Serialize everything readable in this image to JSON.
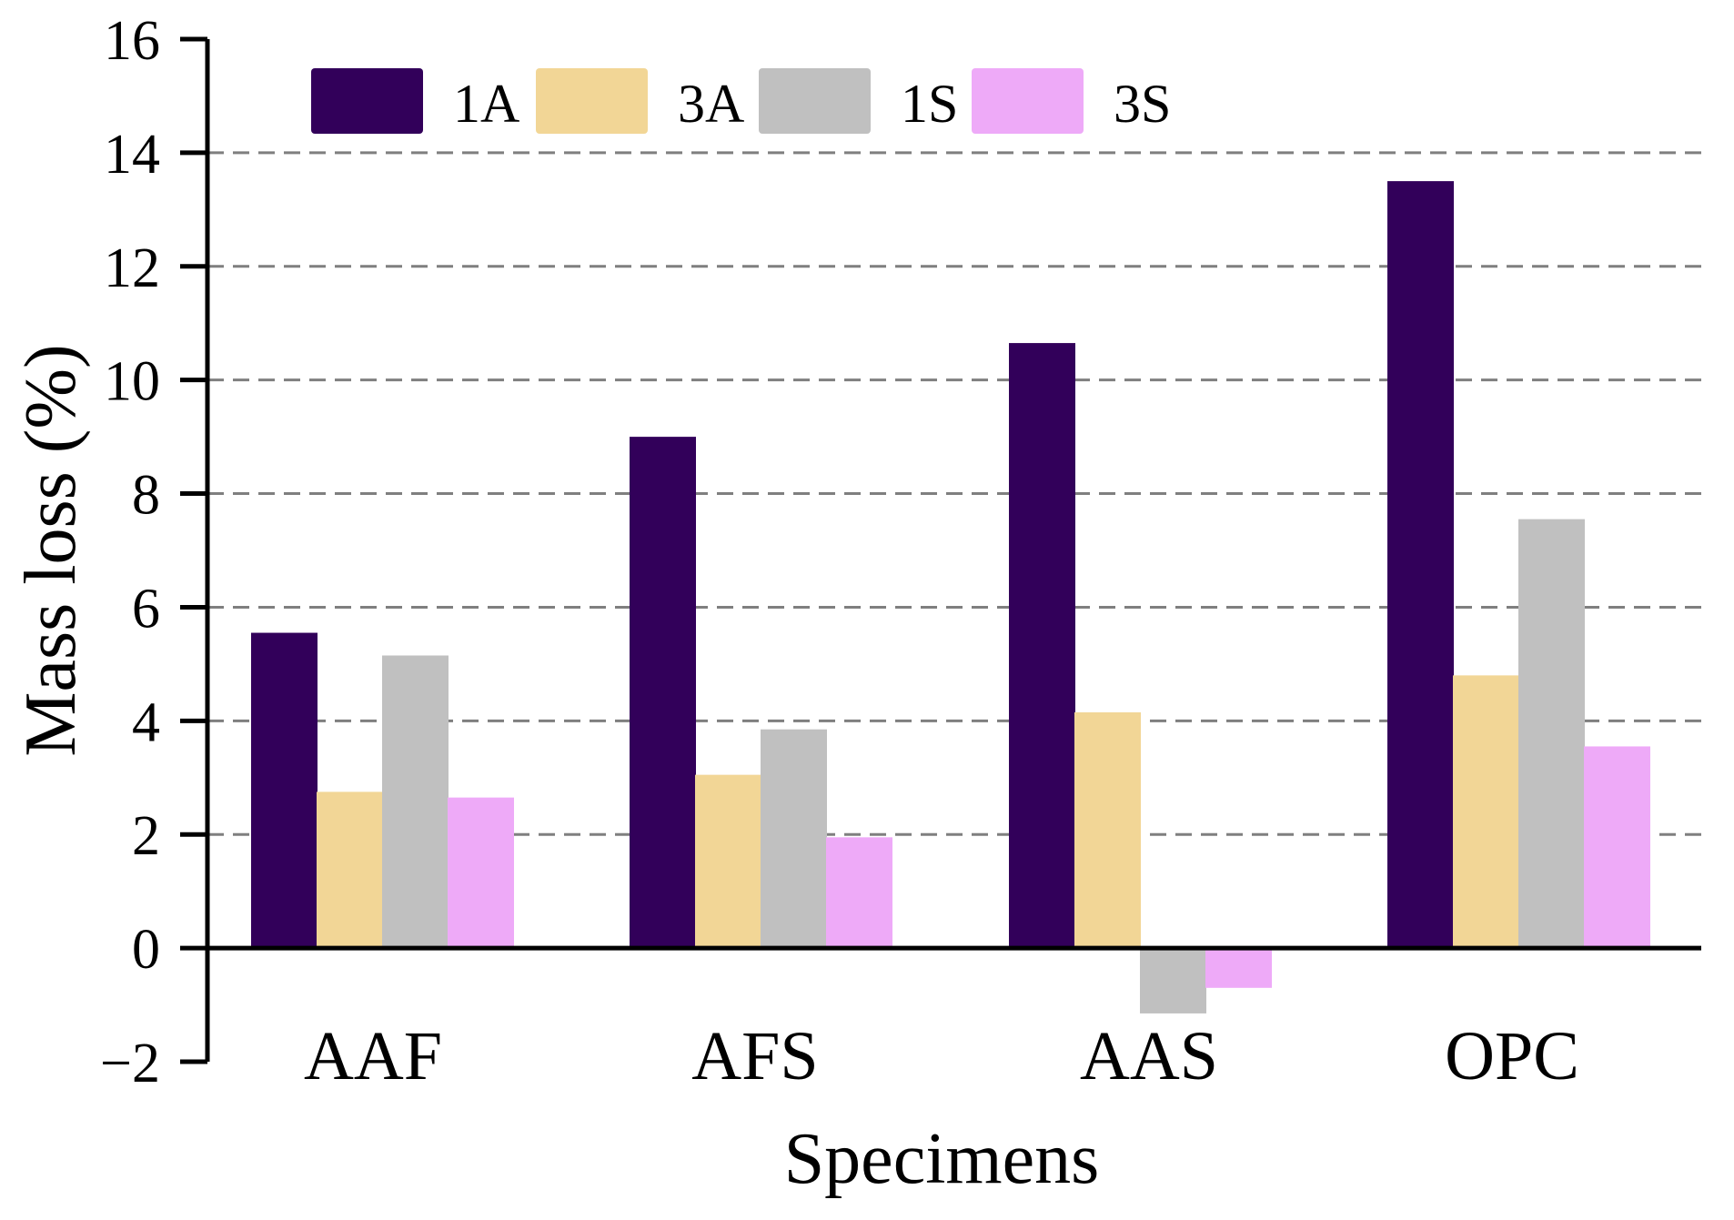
{
  "chart_data": {
    "type": "bar",
    "title": "",
    "xlabel": "Specimens",
    "ylabel": "Mass loss (%)",
    "ylim": [
      -2,
      16
    ],
    "yticks": [
      -2,
      0,
      2,
      4,
      6,
      8,
      10,
      12,
      14,
      16
    ],
    "ytick_labels": [
      "−2",
      "0",
      "2",
      "4",
      "6",
      "8",
      "10",
      "12",
      "14",
      "16"
    ],
    "grid": "horizontal dashed",
    "legend_position": "top-left",
    "categories": [
      "AAF",
      "AFS",
      "AAS",
      "OPC"
    ],
    "series": [
      {
        "name": "1A",
        "color": "#32005a",
        "values": [
          5.55,
          9.0,
          10.65,
          13.5
        ]
      },
      {
        "name": "3A",
        "color": "#f2d696",
        "values": [
          2.75,
          3.05,
          4.15,
          4.8
        ]
      },
      {
        "name": "1S",
        "color": "#c0c0c0",
        "values": [
          5.15,
          3.85,
          -1.15,
          7.55
        ]
      },
      {
        "name": "3S",
        "color": "#eeaaf8",
        "values": [
          2.65,
          1.95,
          -0.7,
          3.55
        ]
      }
    ]
  }
}
